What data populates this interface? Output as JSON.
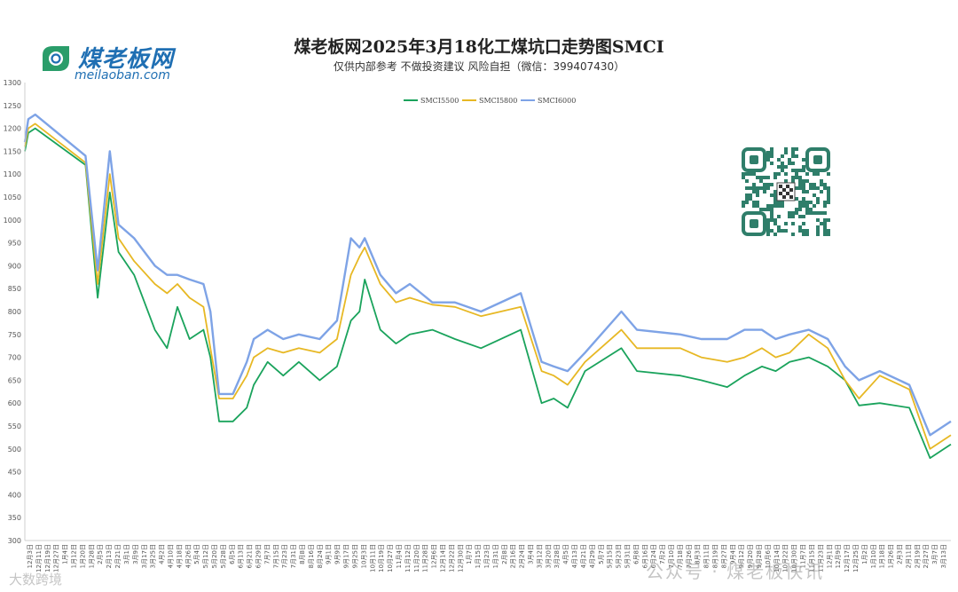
{
  "logo": {
    "name": "煤老板网",
    "site": "meilaoban.com"
  },
  "header": {
    "title": "煤老板网2025年3月18化工煤坑口走势图SMCI",
    "subtitle": "仅供内部参考 不做投资建议 风险自担（微信：399407430）"
  },
  "watermarks": {
    "right": "公众号 · 煤老板快讯",
    "left": "大数跨境"
  },
  "qr_icon": "qr-code-icon",
  "chart_data": {
    "type": "line",
    "ylim": [
      300,
      1300
    ],
    "yticks": [
      300,
      350,
      400,
      450,
      500,
      550,
      600,
      650,
      700,
      750,
      800,
      850,
      900,
      950,
      1000,
      1050,
      1100,
      1150,
      1200,
      1250,
      1300
    ],
    "grid": false,
    "legend": "top-center",
    "x_labels": [
      "12月3日",
      "12月11日",
      "12月19日",
      "12月27日",
      "1月4日",
      "1月12日",
      "1月20日",
      "1月28日",
      "2月5日",
      "2月13日",
      "2月21日",
      "3月1日",
      "3月9日",
      "3月17日",
      "3月25日",
      "4月2日",
      "4月10日",
      "4月18日",
      "4月26日",
      "5月4日",
      "5月12日",
      "5月20日",
      "5月28日",
      "6月5日",
      "6月13日",
      "6月21日",
      "6月29日",
      "7月7日",
      "7月15日",
      "7月23日",
      "7月31日",
      "8月8日",
      "8月16日",
      "8月24日",
      "9月1日",
      "9月9日",
      "9月17日",
      "9月25日",
      "10月3日",
      "10月11日",
      "10月19日",
      "10月27日",
      "11月4日",
      "11月12日",
      "11月20日",
      "11月28日",
      "12月6日",
      "12月14日",
      "12月22日",
      "12月30日",
      "1月7日",
      "1月15日",
      "1月23日",
      "1月31日",
      "2月8日",
      "2月16日",
      "2月24日",
      "3月4日",
      "3月12日",
      "3月20日",
      "3月28日",
      "4月5日",
      "4月13日",
      "4月21日",
      "4月29日",
      "5月7日",
      "5月15日",
      "5月23日",
      "5月31日",
      "6月8日",
      "6月16日",
      "6月24日",
      "7月2日",
      "7月10日",
      "7月18日",
      "7月26日",
      "8月3日",
      "8月11日",
      "8月19日",
      "8月27日",
      "9月4日",
      "9月12日",
      "9月20日",
      "9月28日",
      "10月6日",
      "10月14日",
      "10月22日",
      "10月30日",
      "11月7日",
      "11月15日",
      "11月23日",
      "12月1日",
      "12月9日",
      "12月17日",
      "12月25日",
      "1月2日",
      "1月10日",
      "1月18日",
      "1月26日",
      "2月3日",
      "2月11日",
      "2月19日",
      "2月27日",
      "3月7日",
      "3月13日"
    ],
    "series": [
      {
        "name": "SMCI5500",
        "color": "#1aa35c",
        "points": [
          [
            0,
            1150
          ],
          [
            4,
            1190
          ],
          [
            12,
            1200
          ],
          [
            70,
            1120
          ],
          [
            84,
            830
          ],
          [
            98,
            1060
          ],
          [
            108,
            930
          ],
          [
            126,
            880
          ],
          [
            150,
            760
          ],
          [
            164,
            720
          ],
          [
            176,
            810
          ],
          [
            190,
            740
          ],
          [
            206,
            760
          ],
          [
            214,
            700
          ],
          [
            224,
            560
          ],
          [
            240,
            560
          ],
          [
            256,
            590
          ],
          [
            264,
            640
          ],
          [
            280,
            690
          ],
          [
            298,
            660
          ],
          [
            316,
            690
          ],
          [
            340,
            650
          ],
          [
            360,
            680
          ],
          [
            376,
            780
          ],
          [
            386,
            800
          ],
          [
            392,
            870
          ],
          [
            410,
            760
          ],
          [
            428,
            730
          ],
          [
            444,
            750
          ],
          [
            470,
            760
          ],
          [
            496,
            740
          ],
          [
            526,
            720
          ],
          [
            572,
            760
          ],
          [
            596,
            600
          ],
          [
            610,
            610
          ],
          [
            626,
            590
          ],
          [
            646,
            670
          ],
          [
            688,
            720
          ],
          [
            706,
            670
          ],
          [
            756,
            660
          ],
          [
            780,
            650
          ],
          [
            810,
            635
          ],
          [
            830,
            660
          ],
          [
            850,
            680
          ],
          [
            866,
            670
          ],
          [
            882,
            690
          ],
          [
            904,
            700
          ],
          [
            926,
            680
          ],
          [
            946,
            650
          ],
          [
            962,
            595
          ],
          [
            986,
            600
          ],
          [
            1020,
            590
          ],
          [
            1044,
            480
          ],
          [
            1068,
            510
          ]
        ]
      },
      {
        "name": "SMCI5800",
        "color": "#e7b824",
        "points": [
          [
            0,
            1160
          ],
          [
            4,
            1200
          ],
          [
            12,
            1210
          ],
          [
            70,
            1125
          ],
          [
            84,
            860
          ],
          [
            98,
            1100
          ],
          [
            108,
            960
          ],
          [
            126,
            910
          ],
          [
            150,
            860
          ],
          [
            164,
            840
          ],
          [
            176,
            860
          ],
          [
            190,
            830
          ],
          [
            206,
            810
          ],
          [
            214,
            720
          ],
          [
            224,
            610
          ],
          [
            240,
            610
          ],
          [
            256,
            660
          ],
          [
            264,
            700
          ],
          [
            280,
            720
          ],
          [
            298,
            710
          ],
          [
            316,
            720
          ],
          [
            340,
            710
          ],
          [
            360,
            740
          ],
          [
            376,
            880
          ],
          [
            386,
            920
          ],
          [
            392,
            940
          ],
          [
            410,
            860
          ],
          [
            428,
            820
          ],
          [
            444,
            830
          ],
          [
            470,
            815
          ],
          [
            496,
            810
          ],
          [
            526,
            790
          ],
          [
            572,
            810
          ],
          [
            596,
            670
          ],
          [
            610,
            660
          ],
          [
            626,
            640
          ],
          [
            646,
            690
          ],
          [
            688,
            760
          ],
          [
            706,
            720
          ],
          [
            756,
            720
          ],
          [
            780,
            700
          ],
          [
            810,
            690
          ],
          [
            830,
            700
          ],
          [
            850,
            720
          ],
          [
            866,
            700
          ],
          [
            882,
            710
          ],
          [
            904,
            750
          ],
          [
            926,
            720
          ],
          [
            946,
            650
          ],
          [
            962,
            610
          ],
          [
            986,
            660
          ],
          [
            1020,
            630
          ],
          [
            1044,
            500
          ],
          [
            1068,
            530
          ]
        ]
      },
      {
        "name": "SMCI6000",
        "color": "#7ea3e6",
        "points": [
          [
            0,
            1170
          ],
          [
            4,
            1220
          ],
          [
            12,
            1230
          ],
          [
            70,
            1140
          ],
          [
            84,
            890
          ],
          [
            98,
            1150
          ],
          [
            108,
            990
          ],
          [
            126,
            960
          ],
          [
            150,
            900
          ],
          [
            164,
            880
          ],
          [
            176,
            880
          ],
          [
            190,
            870
          ],
          [
            206,
            860
          ],
          [
            214,
            800
          ],
          [
            224,
            620
          ],
          [
            240,
            620
          ],
          [
            256,
            690
          ],
          [
            264,
            740
          ],
          [
            280,
            760
          ],
          [
            298,
            740
          ],
          [
            316,
            750
          ],
          [
            340,
            740
          ],
          [
            360,
            780
          ],
          [
            376,
            960
          ],
          [
            386,
            940
          ],
          [
            392,
            960
          ],
          [
            410,
            880
          ],
          [
            428,
            840
          ],
          [
            444,
            860
          ],
          [
            470,
            820
          ],
          [
            496,
            820
          ],
          [
            526,
            800
          ],
          [
            572,
            840
          ],
          [
            596,
            690
          ],
          [
            610,
            680
          ],
          [
            626,
            670
          ],
          [
            646,
            710
          ],
          [
            688,
            800
          ],
          [
            706,
            760
          ],
          [
            756,
            750
          ],
          [
            780,
            740
          ],
          [
            810,
            740
          ],
          [
            830,
            760
          ],
          [
            850,
            760
          ],
          [
            866,
            740
          ],
          [
            882,
            750
          ],
          [
            904,
            760
          ],
          [
            926,
            740
          ],
          [
            946,
            680
          ],
          [
            962,
            650
          ],
          [
            986,
            670
          ],
          [
            1020,
            640
          ],
          [
            1044,
            530
          ],
          [
            1068,
            560
          ]
        ]
      }
    ]
  }
}
